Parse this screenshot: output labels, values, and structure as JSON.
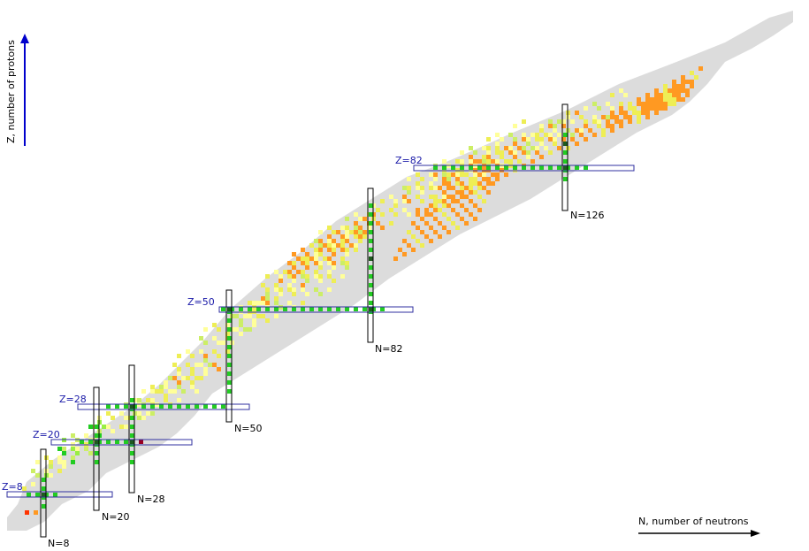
{
  "axes": {
    "x_label": "N, number of neutrons",
    "y_label": "Z, number of protons"
  },
  "colors": {
    "background": "#ffffff",
    "band": "#dcdcdc",
    "stable": "#1e5a1e",
    "magic_green": "#22cc22",
    "light_green": "#99ee44",
    "yellow_green": "#ccee66",
    "pale_yellow": "#ffff99",
    "yellow": "#eeee55",
    "orange": "#ff9922",
    "red": "#ff3300",
    "dark_red": "#990022",
    "proton_bar_stroke": "#3030a0",
    "neutron_bar_stroke": "#000000",
    "z_label": "#1a1aa8",
    "z_arrow": "#0000cc"
  },
  "magic": {
    "proton": [
      {
        "label": "Z=8"
      },
      {
        "label": "Z=20"
      },
      {
        "label": "Z=28"
      },
      {
        "label": "Z=50"
      },
      {
        "label": "Z=82"
      }
    ],
    "neutron": [
      {
        "label": "N=8"
      },
      {
        "label": "N=20"
      },
      {
        "label": "N=28"
      },
      {
        "label": "N=50"
      },
      {
        "label": "N=82"
      },
      {
        "label": "N=126"
      }
    ]
  }
}
